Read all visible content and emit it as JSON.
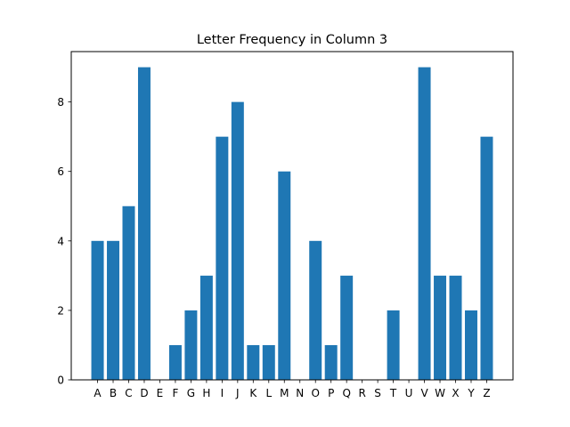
{
  "chart_data": {
    "type": "bar",
    "title": "Letter Frequency in Column 3",
    "xlabel": "",
    "ylabel": "",
    "categories": [
      "A",
      "B",
      "C",
      "D",
      "E",
      "F",
      "G",
      "H",
      "I",
      "J",
      "K",
      "L",
      "M",
      "N",
      "O",
      "P",
      "Q",
      "R",
      "S",
      "T",
      "U",
      "V",
      "W",
      "X",
      "Y",
      "Z"
    ],
    "values": [
      4,
      4,
      5,
      9,
      0,
      1,
      2,
      3,
      7,
      8,
      1,
      1,
      6,
      0,
      4,
      1,
      3,
      0,
      0,
      2,
      0,
      9,
      3,
      3,
      2,
      7
    ],
    "ylim": [
      0,
      9.45
    ],
    "yticks": [
      0,
      2,
      4,
      6,
      8
    ],
    "grid": false,
    "bar_color": "#1f77b4"
  }
}
